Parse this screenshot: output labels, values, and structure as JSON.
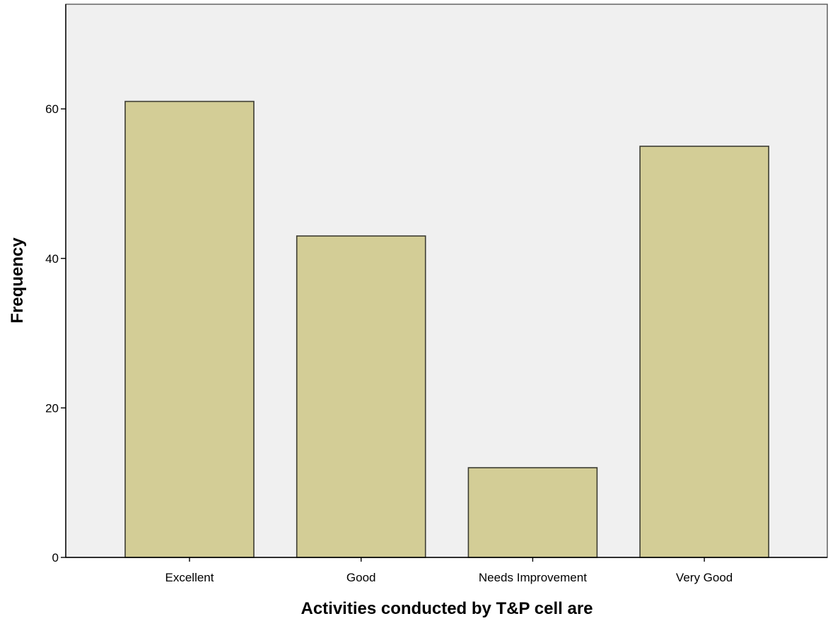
{
  "chart_data": {
    "type": "bar",
    "categories": [
      "Excellent",
      "Good",
      "Needs Improvement",
      "Very Good"
    ],
    "values": [
      61,
      43,
      12,
      55
    ],
    "title": "",
    "xlabel": "Activities conducted by T&P cell are",
    "ylabel": "Frequency",
    "ylim": [
      0,
      74
    ],
    "yticks": [
      0,
      20,
      40,
      60
    ],
    "grid": false,
    "legend": "none",
    "colors": {
      "bar_fill": "#d3cd96",
      "bar_stroke": "#3c3c32",
      "plot_background": "#f0f0f0"
    }
  }
}
